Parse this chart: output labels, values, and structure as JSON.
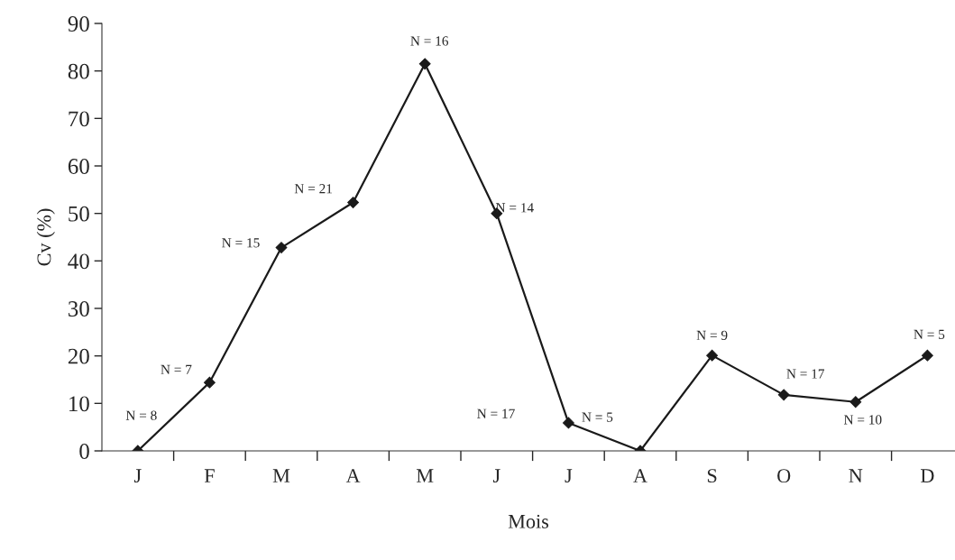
{
  "chart_data": {
    "type": "line",
    "xlabel": "Mois",
    "ylabel": "Cv (%)",
    "categories": [
      "J",
      "F",
      "M",
      "A",
      "M",
      "J",
      "J",
      "A",
      "S",
      "O",
      "N",
      "D"
    ],
    "values": [
      0,
      14.4,
      42.8,
      52.3,
      81.5,
      50.0,
      5.9,
      0,
      20.1,
      11.8,
      10.3,
      20.1
    ],
    "annotations": [
      "N = 8",
      "N = 7",
      "N = 15",
      "N = 21",
      "N = 16",
      "N = 14",
      "N = 5",
      "N = 17",
      "N = 9",
      "N = 17",
      "N = 10",
      "N = 5"
    ],
    "color": "#1a1a1a",
    "marker": "diamond",
    "line_style": "solid",
    "grid": false,
    "legend": false,
    "ylim": [
      0,
      90
    ],
    "yticks": [
      0,
      10,
      20,
      30,
      40,
      50,
      60,
      70,
      80,
      90
    ]
  }
}
